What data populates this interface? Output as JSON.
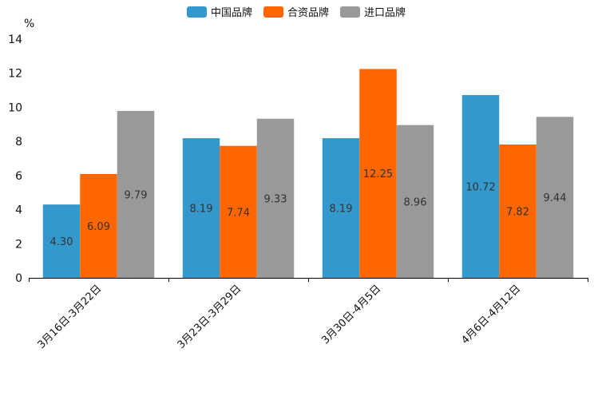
{
  "chart_data": {
    "type": "bar",
    "title": "",
    "unit_label": "%",
    "xlabel": "",
    "ylabel": "%",
    "ylim": [
      0,
      14
    ],
    "yticks": [
      "0",
      "2",
      "4",
      "6",
      "8",
      "10",
      "12",
      "14"
    ],
    "categories": [
      "3月16日-3月22日",
      "3月23日-3月29日",
      "3月30日-4月5日",
      "4月6日-4月12日"
    ],
    "series": [
      {
        "name": "中国品牌",
        "color": "#3399cc",
        "values": [
          4.3,
          8.19,
          8.19,
          10.72
        ],
        "labels": [
          "4.30",
          "8.19",
          "8.19",
          "10.72"
        ]
      },
      {
        "name": "合资品牌",
        "color": "#ff6600",
        "values": [
          6.09,
          7.74,
          12.25,
          7.82
        ],
        "labels": [
          "6.09",
          "7.74",
          "12.25",
          "7.82"
        ]
      },
      {
        "name": "进口品牌",
        "color": "#999999",
        "values": [
          9.79,
          9.33,
          8.96,
          9.44
        ],
        "labels": [
          "9.79",
          "9.33",
          "8.96",
          "9.44"
        ]
      }
    ],
    "legend_position": "top-center",
    "grid": false
  }
}
